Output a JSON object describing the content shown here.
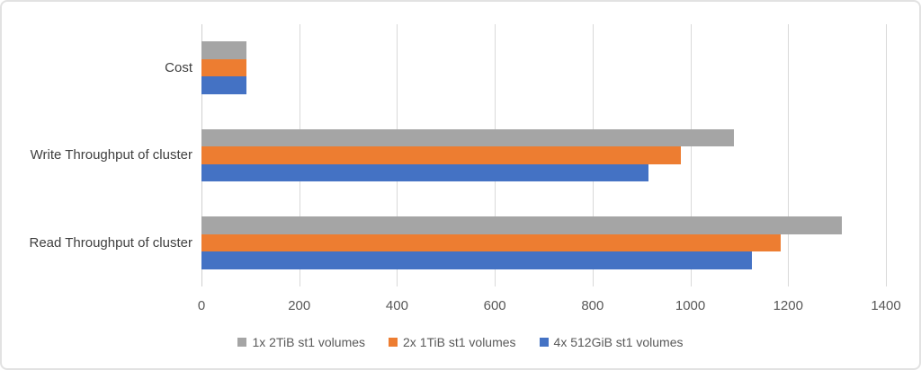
{
  "chart_data": {
    "type": "bar",
    "orientation": "horizontal",
    "title": "",
    "xlabel": "",
    "ylabel": "",
    "categories": [
      "Cost",
      "Write Throughput of cluster",
      "Read Throughput of cluster"
    ],
    "series": [
      {
        "name": "1x 2TiB st1 volumes",
        "color": "#A5A5A5",
        "values": [
          92,
          1090,
          1310
        ]
      },
      {
        "name": "2x 1TiB st1 volumes",
        "color": "#ED7D31",
        "values": [
          92,
          980,
          1185
        ]
      },
      {
        "name": "4x 512GiB st1 volumes",
        "color": "#4472C4",
        "values": [
          92,
          915,
          1125
        ]
      }
    ],
    "x_ticks": [
      0,
      200,
      400,
      600,
      800,
      1000,
      1200,
      1400
    ],
    "xlim": [
      0,
      1400
    ],
    "grid": true,
    "legend_position": "bottom"
  },
  "colors": {
    "background": "#FFFFFF",
    "frame_border": "#E2E2E2",
    "gridline": "#D9D9D9",
    "axis_line": "#D0D0D0",
    "tick_text": "#595959",
    "category_text": "#404040",
    "legend_text": "#595959"
  }
}
